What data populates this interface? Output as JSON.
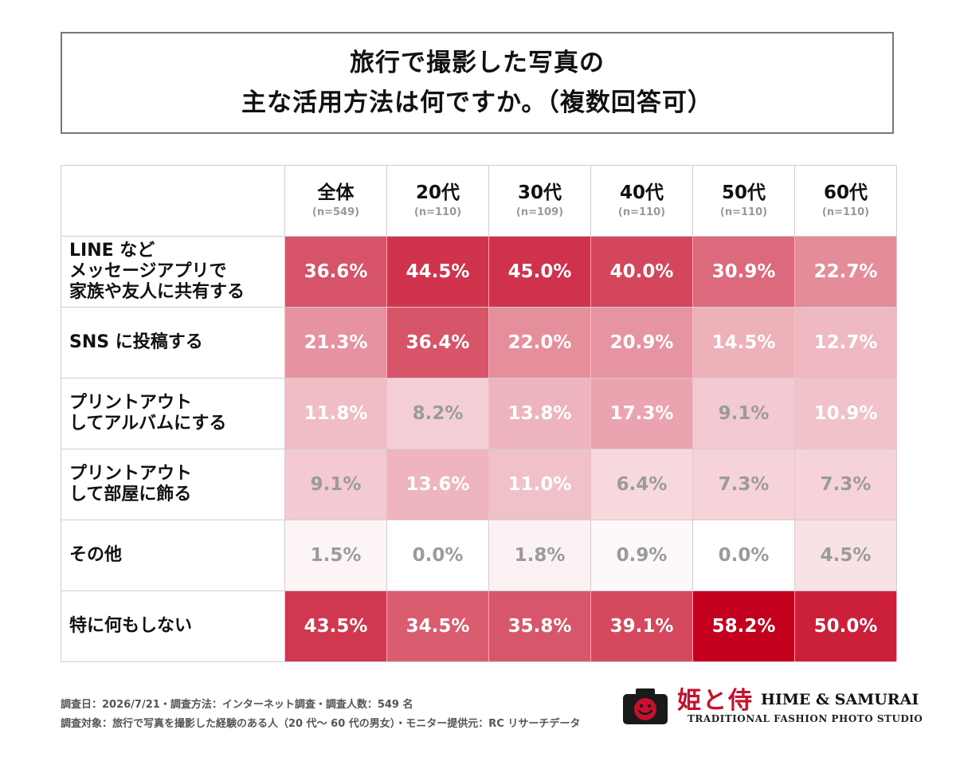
{
  "title": {
    "line1": "旅行で撮影した写真の",
    "line2": "主な活用方法は何ですか。（複数回答可）"
  },
  "colors": {
    "heat_max": "#c4001f",
    "text_light": "#ffffff",
    "text_dark": "#9b9b9b"
  },
  "chart_data": {
    "type": "heatmap",
    "columns": [
      {
        "label": "全体",
        "n": "(n=549)"
      },
      {
        "label": "20代",
        "n": "(n=110)"
      },
      {
        "label": "30代",
        "n": "(n=109)"
      },
      {
        "label": "40代",
        "n": "(n=110)"
      },
      {
        "label": "50代",
        "n": "(n=110)"
      },
      {
        "label": "60代",
        "n": "(n=110)"
      }
    ],
    "rows": [
      {
        "label": [
          "LINE など",
          "メッセージアプリで",
          "家族や友人に共有する"
        ],
        "values": [
          36.6,
          44.5,
          45.0,
          40.0,
          30.9,
          22.7
        ]
      },
      {
        "label": [
          "SNS に投稿する"
        ],
        "values": [
          21.3,
          36.4,
          22.0,
          20.9,
          14.5,
          12.7
        ]
      },
      {
        "label": [
          "プリントアウト",
          "してアルバムにする"
        ],
        "values": [
          11.8,
          8.2,
          13.8,
          17.3,
          9.1,
          10.9
        ]
      },
      {
        "label": [
          "プリントアウト",
          "して部屋に飾る"
        ],
        "values": [
          9.1,
          13.6,
          11.0,
          6.4,
          7.3,
          7.3
        ]
      },
      {
        "label": [
          "その他"
        ],
        "values": [
          1.5,
          0.0,
          1.8,
          0.9,
          0.0,
          4.5
        ]
      },
      {
        "label": [
          "特に何もしない"
        ],
        "values": [
          43.5,
          34.5,
          35.8,
          39.1,
          58.2,
          50.0
        ]
      }
    ],
    "unit": "%",
    "value_range": [
      0,
      58.2
    ]
  },
  "footnotes": {
    "line1": "調査日：2026/7/21・調査方法：インターネット調査・調査人数：549 名",
    "line2": "調査対象：旅行で写真を撮影した経験のある人（20 代〜 60 代の男女）・モニター提供元：RC リサーチデータ"
  },
  "logo": {
    "kanji": "姫と侍",
    "name": "HIME & SAMURAI",
    "tagline": "TRADITIONAL FASHION PHOTO STUDIO"
  }
}
